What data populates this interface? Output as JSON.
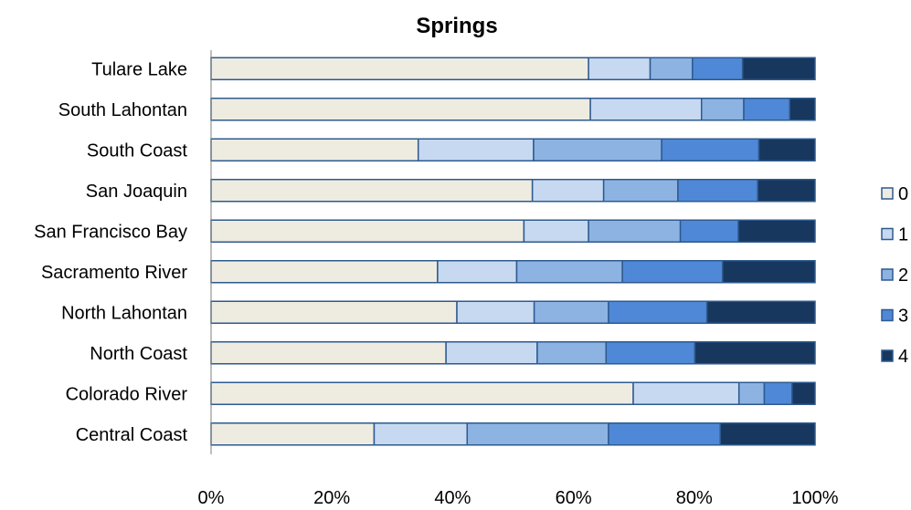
{
  "chart_data": {
    "type": "bar",
    "orientation": "horizontal",
    "stacked": "percent",
    "title": "Springs",
    "categories": [
      "Tulare Lake",
      "South Lahontan",
      "South Coast",
      "San Joaquin",
      "San Francisco Bay",
      "Sacramento River",
      "North Lahontan",
      "North Coast",
      "Colorado River",
      "Central Coast"
    ],
    "series": [
      {
        "name": "0",
        "color": "#eeece1",
        "values": [
          62.5,
          62.8,
          34.3,
          53.2,
          51.8,
          37.5,
          40.7,
          38.9,
          69.9,
          27.0
        ]
      },
      {
        "name": "1",
        "color": "#c6d9f1",
        "values": [
          10.2,
          18.4,
          19.1,
          11.8,
          10.7,
          13.1,
          12.8,
          15.1,
          17.5,
          15.4
        ]
      },
      {
        "name": "2",
        "color": "#8db3e2",
        "values": [
          7.0,
          7.0,
          21.2,
          12.3,
          15.2,
          17.5,
          12.3,
          11.4,
          4.2,
          23.4
        ]
      },
      {
        "name": "3",
        "color": "#4f88d6",
        "values": [
          8.3,
          7.6,
          16.1,
          13.2,
          9.6,
          16.6,
          16.3,
          14.7,
          4.6,
          18.5
        ]
      },
      {
        "name": "4",
        "color": "#17375e",
        "values": [
          12.0,
          4.2,
          9.3,
          9.5,
          12.7,
          15.3,
          17.9,
          19.9,
          3.8,
          15.7
        ]
      }
    ],
    "x_ticks": [
      "0%",
      "20%",
      "40%",
      "60%",
      "80%",
      "100%"
    ],
    "xlim": [
      0,
      100
    ],
    "grid": false,
    "legend_position": "right"
  }
}
